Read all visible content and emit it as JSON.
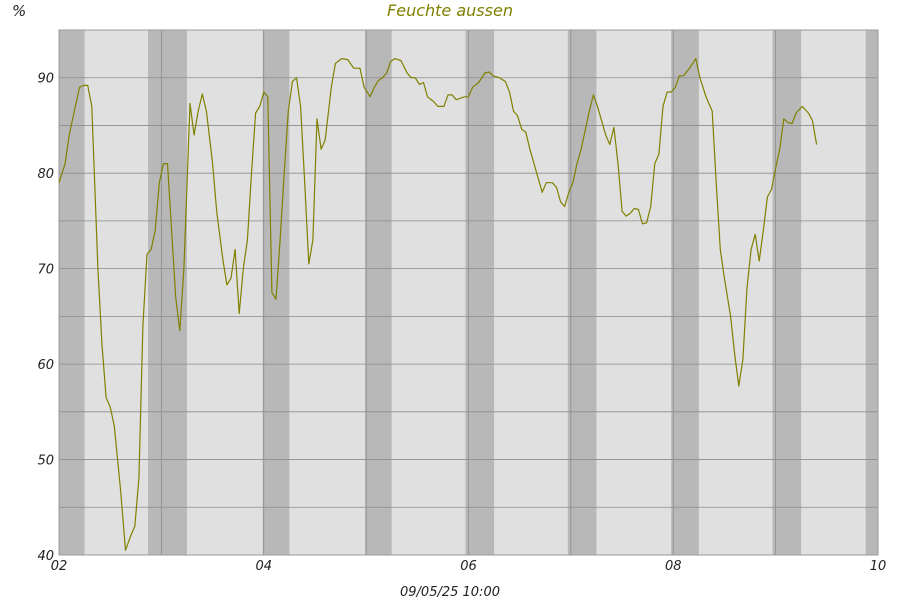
{
  "chart_data": {
    "type": "line",
    "title": "Feuchte aussen",
    "ylabel": "%",
    "xlabel": "09/05/25 10:00",
    "xlim": [
      2,
      10
    ],
    "ylim": [
      40,
      95
    ],
    "x_ticks": [
      2,
      4,
      6,
      8,
      10
    ],
    "x_tick_labels": [
      "02",
      "04",
      "06",
      "08",
      "10"
    ],
    "y_ticks": [
      40,
      50,
      60,
      70,
      80,
      90
    ],
    "y_tick_labels": [
      "40",
      "50",
      "60",
      "70",
      "80",
      "90"
    ],
    "grid": true,
    "series": [
      {
        "values": [
          [
            2.0,
            79.0
          ],
          [
            2.06,
            81.0
          ],
          [
            2.1,
            84.0
          ],
          [
            2.14,
            86.0
          ],
          [
            2.2,
            89.0
          ],
          [
            2.24,
            89.2
          ],
          [
            2.28,
            89.2
          ],
          [
            2.32,
            87.0
          ],
          [
            2.38,
            70.0
          ],
          [
            2.42,
            62.0
          ],
          [
            2.46,
            56.5
          ],
          [
            2.5,
            55.5
          ],
          [
            2.54,
            53.5
          ],
          [
            2.6,
            47.0
          ],
          [
            2.65,
            40.5
          ],
          [
            2.7,
            42.0
          ],
          [
            2.74,
            43.0
          ],
          [
            2.78,
            48.0
          ],
          [
            2.82,
            64.0
          ],
          [
            2.86,
            71.5
          ],
          [
            2.9,
            72.0
          ],
          [
            2.94,
            74.0
          ],
          [
            2.98,
            79.0
          ],
          [
            3.02,
            81.0
          ],
          [
            3.06,
            81.0
          ],
          [
            3.1,
            74.0
          ],
          [
            3.14,
            67.0
          ],
          [
            3.18,
            63.5
          ],
          [
            3.22,
            70.0
          ],
          [
            3.28,
            87.3
          ],
          [
            3.32,
            84.0
          ],
          [
            3.36,
            86.5
          ],
          [
            3.4,
            88.3
          ],
          [
            3.44,
            86.5
          ],
          [
            3.5,
            81.0
          ],
          [
            3.54,
            76.0
          ],
          [
            3.6,
            71.0
          ],
          [
            3.64,
            68.3
          ],
          [
            3.68,
            69.0
          ],
          [
            3.72,
            72.0
          ],
          [
            3.76,
            65.3
          ],
          [
            3.8,
            70.0
          ],
          [
            3.84,
            73.0
          ],
          [
            3.88,
            80.0
          ],
          [
            3.92,
            86.3
          ],
          [
            3.96,
            87.0
          ],
          [
            4.0,
            88.5
          ],
          [
            4.04,
            88.0
          ],
          [
            4.08,
            67.5
          ],
          [
            4.12,
            66.8
          ],
          [
            4.16,
            73.0
          ],
          [
            4.2,
            80.0
          ],
          [
            4.24,
            86.5
          ],
          [
            4.28,
            89.6
          ],
          [
            4.32,
            90.0
          ],
          [
            4.36,
            87.0
          ],
          [
            4.4,
            79.0
          ],
          [
            4.44,
            70.5
          ],
          [
            4.48,
            73.0
          ],
          [
            4.52,
            85.7
          ],
          [
            4.56,
            82.5
          ],
          [
            4.6,
            83.5
          ],
          [
            4.66,
            89.0
          ],
          [
            4.7,
            91.5
          ],
          [
            4.76,
            92.0
          ],
          [
            4.82,
            91.9
          ],
          [
            4.88,
            91.0
          ],
          [
            4.94,
            91.0
          ],
          [
            4.98,
            89.0
          ],
          [
            5.04,
            88.0
          ],
          [
            5.08,
            89.0
          ],
          [
            5.12,
            89.7
          ],
          [
            5.16,
            90.0
          ],
          [
            5.2,
            90.5
          ],
          [
            5.24,
            91.7
          ],
          [
            5.28,
            92.0
          ],
          [
            5.34,
            91.8
          ],
          [
            5.4,
            90.5
          ],
          [
            5.44,
            90.0
          ],
          [
            5.48,
            90.0
          ],
          [
            5.52,
            89.3
          ],
          [
            5.56,
            89.5
          ],
          [
            5.6,
            88.0
          ],
          [
            5.66,
            87.5
          ],
          [
            5.7,
            87.0
          ],
          [
            5.76,
            87.0
          ],
          [
            5.8,
            88.2
          ],
          [
            5.84,
            88.2
          ],
          [
            5.88,
            87.7
          ],
          [
            5.96,
            88.0
          ],
          [
            6.0,
            88.0
          ],
          [
            6.04,
            89.0
          ],
          [
            6.1,
            89.5
          ],
          [
            6.16,
            90.5
          ],
          [
            6.2,
            90.6
          ],
          [
            6.24,
            90.2
          ],
          [
            6.3,
            90.0
          ],
          [
            6.36,
            89.6
          ],
          [
            6.4,
            88.5
          ],
          [
            6.44,
            86.5
          ],
          [
            6.48,
            86.0
          ],
          [
            6.52,
            84.6
          ],
          [
            6.56,
            84.3
          ],
          [
            6.6,
            82.5
          ],
          [
            6.64,
            81.0
          ],
          [
            6.68,
            79.5
          ],
          [
            6.72,
            78.0
          ],
          [
            6.76,
            79.0
          ],
          [
            6.82,
            79.0
          ],
          [
            6.86,
            78.5
          ],
          [
            6.9,
            77.0
          ],
          [
            6.94,
            76.5
          ],
          [
            6.98,
            78.0
          ],
          [
            7.02,
            79.0
          ],
          [
            7.06,
            81.0
          ],
          [
            7.1,
            82.5
          ],
          [
            7.14,
            84.5
          ],
          [
            7.18,
            86.5
          ],
          [
            7.22,
            88.2
          ],
          [
            7.26,
            87.0
          ],
          [
            7.3,
            85.5
          ],
          [
            7.34,
            84.0
          ],
          [
            7.38,
            83.0
          ],
          [
            7.42,
            84.8
          ],
          [
            7.46,
            81.0
          ],
          [
            7.5,
            76.0
          ],
          [
            7.54,
            75.5
          ],
          [
            7.58,
            75.8
          ],
          [
            7.62,
            76.3
          ],
          [
            7.66,
            76.2
          ],
          [
            7.7,
            74.7
          ],
          [
            7.74,
            74.8
          ],
          [
            7.78,
            76.5
          ],
          [
            7.82,
            81.0
          ],
          [
            7.86,
            82.0
          ],
          [
            7.9,
            87.0
          ],
          [
            7.94,
            88.5
          ],
          [
            7.98,
            88.5
          ],
          [
            8.02,
            89.0
          ],
          [
            8.06,
            90.2
          ],
          [
            8.1,
            90.2
          ],
          [
            8.16,
            91.0
          ],
          [
            8.22,
            92.0
          ],
          [
            8.26,
            90.0
          ],
          [
            8.32,
            88.0
          ],
          [
            8.38,
            86.5
          ],
          [
            8.42,
            79.0
          ],
          [
            8.46,
            72.0
          ],
          [
            8.5,
            69.0
          ],
          [
            8.56,
            65.0
          ],
          [
            8.6,
            61.0
          ],
          [
            8.64,
            57.7
          ],
          [
            8.68,
            60.5
          ],
          [
            8.72,
            68.0
          ],
          [
            8.76,
            72.0
          ],
          [
            8.8,
            73.6
          ],
          [
            8.84,
            70.8
          ],
          [
            8.88,
            74.0
          ],
          [
            8.92,
            77.5
          ],
          [
            8.96,
            78.3
          ],
          [
            9.0,
            80.5
          ],
          [
            9.04,
            82.5
          ],
          [
            9.08,
            85.7
          ],
          [
            9.12,
            85.3
          ],
          [
            9.16,
            85.2
          ],
          [
            9.2,
            86.3
          ],
          [
            9.26,
            87.0
          ],
          [
            9.32,
            86.3
          ],
          [
            9.36,
            85.5
          ],
          [
            9.4,
            83.0
          ]
        ]
      }
    ],
    "night_bands": [
      [
        2.0,
        2.25
      ],
      [
        2.87,
        3.25
      ],
      [
        3.99,
        4.25
      ],
      [
        4.99,
        5.25
      ],
      [
        5.97,
        6.25
      ],
      [
        6.97,
        7.25
      ],
      [
        7.98,
        8.25
      ],
      [
        8.97,
        9.25
      ],
      [
        9.88,
        10.0
      ]
    ],
    "colors": {
      "line": "#808000",
      "title": "#808000",
      "plot_background": "#e0e0e0",
      "night_band": "#b8b8b8",
      "grid": "#8c8c8c"
    }
  }
}
